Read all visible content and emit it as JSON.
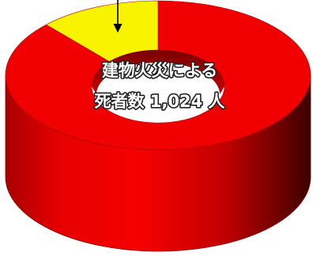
{
  "chart_data": {
    "type": "pie",
    "style": "3d-donut",
    "center_label": {
      "line1": "建物火災による",
      "line2": "死者数 1,024 人"
    },
    "total": 1024,
    "start_angle_deg": 0,
    "direction": "clockwise",
    "slices": [
      {
        "share": 0.869,
        "color": "#f00000"
      },
      {
        "share": 0.131,
        "color": "#f8f400"
      }
    ],
    "annotation_arrow": true
  }
}
